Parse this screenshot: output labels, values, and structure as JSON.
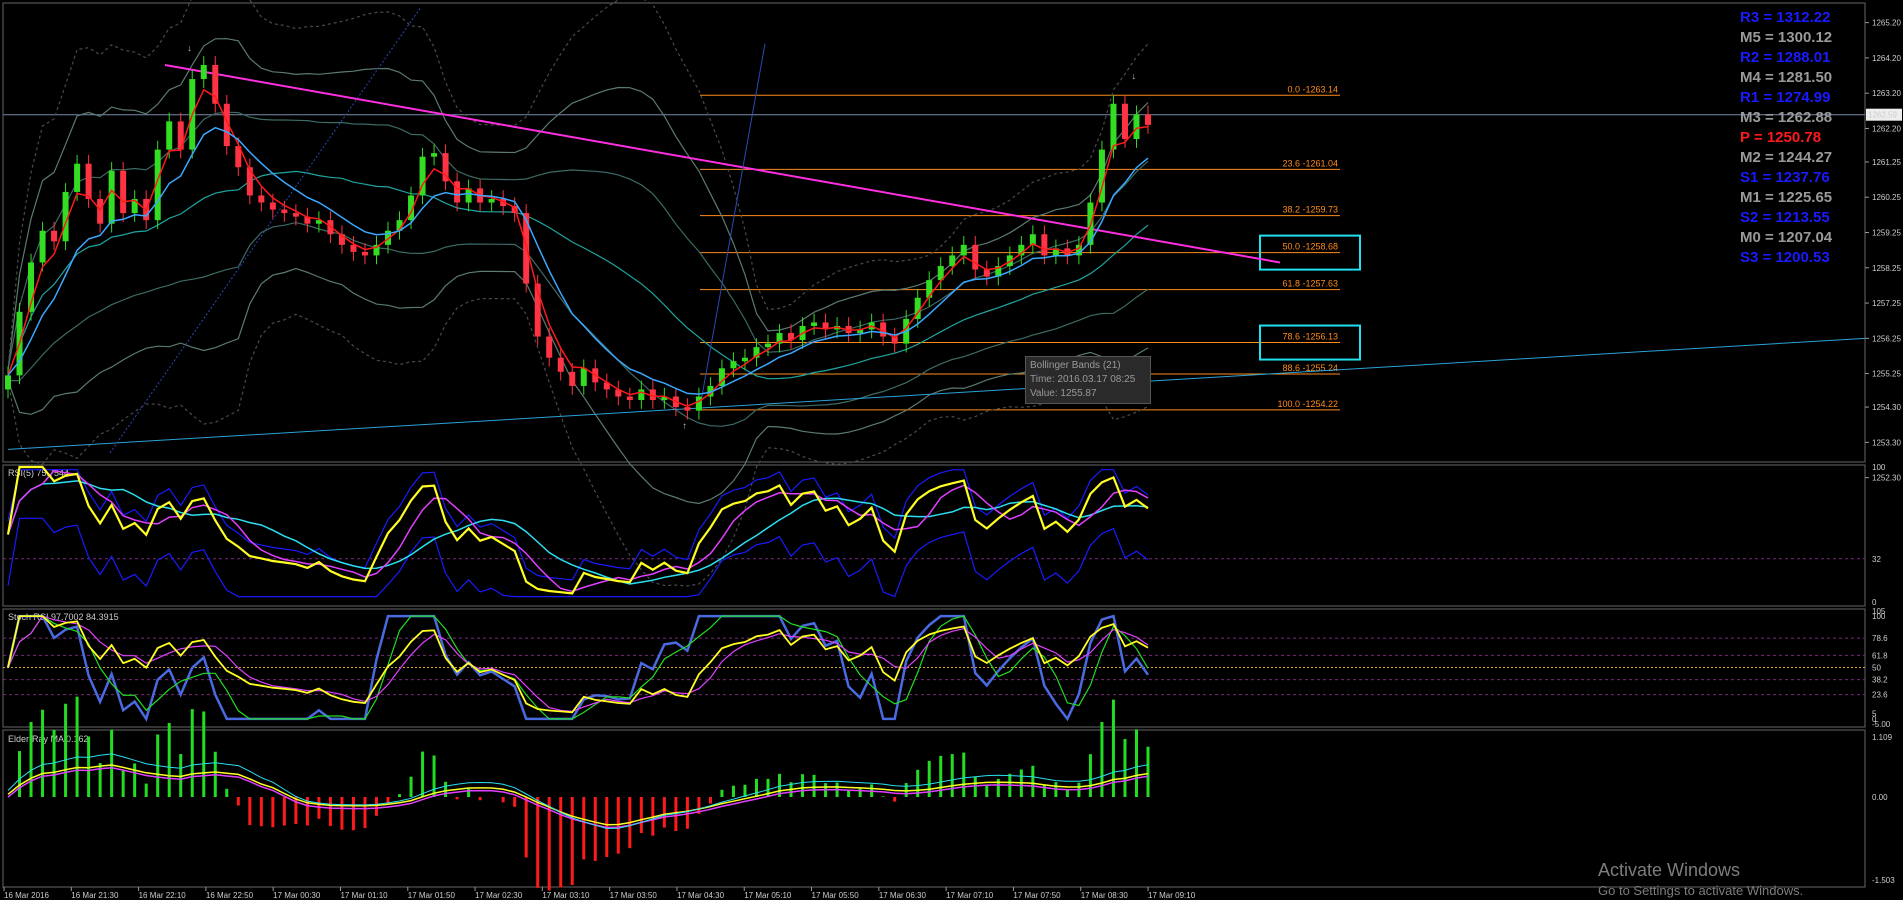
{
  "chart_data": {
    "type": "candlestick",
    "instrument_pair_pivots": [
      {
        "label": "R3 = 1312.22",
        "color": "#1a1aff"
      },
      {
        "label": "M5 = 1300.12",
        "color": "#9a9a9a"
      },
      {
        "label": "R2 = 1288.01",
        "color": "#1a1aff"
      },
      {
        "label": "M4 = 1281.50",
        "color": "#9a9a9a"
      },
      {
        "label": "R1 = 1274.99",
        "color": "#1a1aff"
      },
      {
        "label": "M3 = 1262.88",
        "color": "#9a9a9a"
      },
      {
        "label": "P   = 1250.78",
        "color": "#ff1a1a"
      },
      {
        "label": "M2 = 1244.27",
        "color": "#9a9a9a"
      },
      {
        "label": "S1 = 1237.76",
        "color": "#1a1aff"
      },
      {
        "label": "M1 = 1225.65",
        "color": "#9a9a9a"
      },
      {
        "label": "S2 = 1213.55",
        "color": "#1a1aff"
      },
      {
        "label": "M0 = 1207.04",
        "color": "#9a9a9a"
      },
      {
        "label": "S3 = 1200.53",
        "color": "#1a1aff"
      }
    ],
    "price_axis": {
      "ylim": [
        1252.8,
        1265.7
      ],
      "ticks": [
        "1265.20",
        "1264.20",
        "1263.20",
        "1262.20",
        "1261.25",
        "1260.25",
        "1259.25",
        "1258.25",
        "1257.25",
        "1256.25",
        "1255.25",
        "1254.30",
        "1253.30",
        "1252.30"
      ],
      "tick_values": [
        1265.2,
        1264.2,
        1263.2,
        1262.2,
        1261.25,
        1260.25,
        1259.25,
        1258.25,
        1257.25,
        1256.25,
        1255.25,
        1254.3,
        1253.3,
        1252.3
      ],
      "current_price_label": "1262.59",
      "current_price": 1262.59
    },
    "time_axis": {
      "labels": [
        "16 Mar 2016",
        "16 Mar 21:30",
        "16 Mar 22:10",
        "16 Mar 22:50",
        "17 Mar 00:30",
        "17 Mar 01:10",
        "17 Mar 01:50",
        "17 Mar 02:30",
        "17 Mar 03:10",
        "17 Mar 03:50",
        "17 Mar 04:30",
        "17 Mar 05:10",
        "17 Mar 05:50",
        "17 Mar 06:30",
        "17 Mar 07:10",
        "17 Mar 07:50",
        "17 Mar 08:30",
        "17 Mar 09:10"
      ]
    },
    "fibonacci": [
      {
        "label": "0.0 -1263.14",
        "value": 1263.14
      },
      {
        "label": "23.6 -1261.04",
        "value": 1261.04
      },
      {
        "label": "38.2 -1259.73",
        "value": 1259.73
      },
      {
        "label": "50.0 -1258.68",
        "value": 1258.68
      },
      {
        "label": "61.8 -1257.63",
        "value": 1257.63
      },
      {
        "label": "78.6 -1256.13",
        "value": 1256.13
      },
      {
        "label": "88.6 -1255.24",
        "value": 1255.24
      },
      {
        "label": "100.0 -1254.22",
        "value": 1254.22
      }
    ],
    "closes": [
      1255.2,
      1257.0,
      1258.4,
      1259.3,
      1259.0,
      1260.4,
      1261.2,
      1260.2,
      1259.5,
      1261.0,
      1259.8,
      1260.2,
      1259.6,
      1261.6,
      1262.4,
      1261.6,
      1263.6,
      1264.0,
      1262.9,
      1261.7,
      1261.1,
      1260.3,
      1260.1,
      1259.9,
      1259.8,
      1259.7,
      1259.5,
      1259.6,
      1259.2,
      1258.9,
      1258.7,
      1258.6,
      1258.9,
      1259.3,
      1259.6,
      1260.3,
      1261.4,
      1261.5,
      1260.7,
      1260.1,
      1260.5,
      1260.1,
      1260.2,
      1260.0,
      1259.8,
      1257.8,
      1256.3,
      1255.7,
      1255.3,
      1254.9,
      1255.4,
      1255.0,
      1254.8,
      1254.6,
      1254.5,
      1254.8,
      1254.5,
      1254.6,
      1254.3,
      1254.2,
      1254.6,
      1254.9,
      1255.4,
      1255.6,
      1255.7,
      1256.0,
      1256.1,
      1256.4,
      1256.2,
      1256.6,
      1256.7,
      1256.5,
      1256.6,
      1256.4,
      1256.5,
      1256.7,
      1256.3,
      1256.1,
      1256.8,
      1257.4,
      1257.9,
      1258.3,
      1258.6,
      1258.9,
      1258.2,
      1258.0,
      1258.3,
      1258.6,
      1258.9,
      1259.2,
      1258.6,
      1258.8,
      1258.6,
      1258.9,
      1260.1,
      1261.6,
      1262.9,
      1261.9,
      1262.6,
      1262.3
    ],
    "tooltip": {
      "name": "Bollinger Bands (21)",
      "time": "Time: 2016.03.17 08:25",
      "value": "Value: 1255.87"
    },
    "indicators": [
      {
        "title": "RSI(5) 75.7544",
        "ticks": [
          "100",
          "32",
          "0"
        ]
      },
      {
        "title": "Stoch RSI 97.7002 84.3915",
        "ticks": [
          "105",
          "100",
          "78.6",
          "61.8",
          "50",
          "38.2",
          "23.6",
          "5",
          "0",
          "-5.00"
        ]
      },
      {
        "title": "Elder-Ray MA 0.162",
        "ticks": [
          "1.109",
          "0.00",
          "-1.503"
        ]
      }
    ]
  },
  "watermark": {
    "line1": "Activate Windows",
    "line2": "Go to Settings to activate Windows."
  }
}
